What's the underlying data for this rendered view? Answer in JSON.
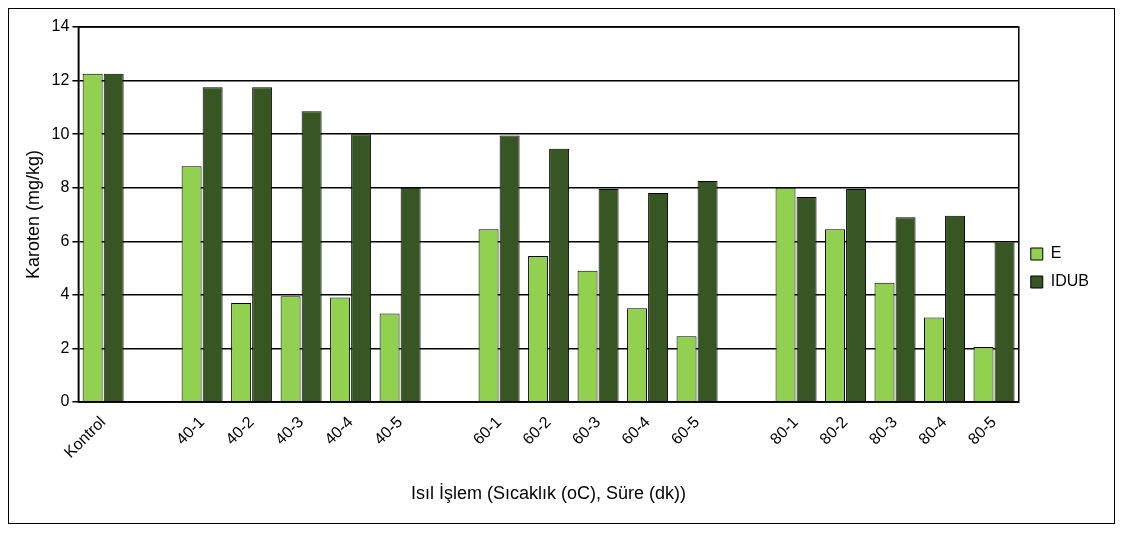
{
  "chart_data": {
    "type": "bar",
    "xlabel": "Isıl İşlem (Sıcaklık (oC), Süre (dk))",
    "ylabel": "Karoten (mg/kg)",
    "categories": [
      "Kontrol",
      null,
      "40-1",
      "40-2",
      "40-3",
      "40-4",
      "40-5",
      null,
      "60-1",
      "60-2",
      "60-3",
      "60-4",
      "60-5",
      null,
      "80-1",
      "80-2",
      "80-3",
      "80-4",
      "80-5"
    ],
    "series": [
      {
        "name": "E",
        "color": "#92d050",
        "values": [
          12.25,
          null,
          8.8,
          3.7,
          3.95,
          3.9,
          3.3,
          null,
          6.45,
          5.45,
          4.9,
          3.5,
          2.45,
          null,
          8.0,
          6.45,
          4.45,
          3.15,
          2.05
        ]
      },
      {
        "name": "IDUB",
        "color": "#375623",
        "values": [
          12.25,
          null,
          11.75,
          11.75,
          10.85,
          10.0,
          8.0,
          null,
          9.95,
          9.45,
          7.95,
          7.8,
          8.25,
          null,
          7.65,
          7.95,
          6.9,
          6.95,
          6.0
        ]
      }
    ],
    "ylim": [
      0,
      14
    ],
    "yticks": [
      0,
      2,
      4,
      6,
      8,
      10,
      12,
      14
    ],
    "grid": "y",
    "legend": "right"
  }
}
